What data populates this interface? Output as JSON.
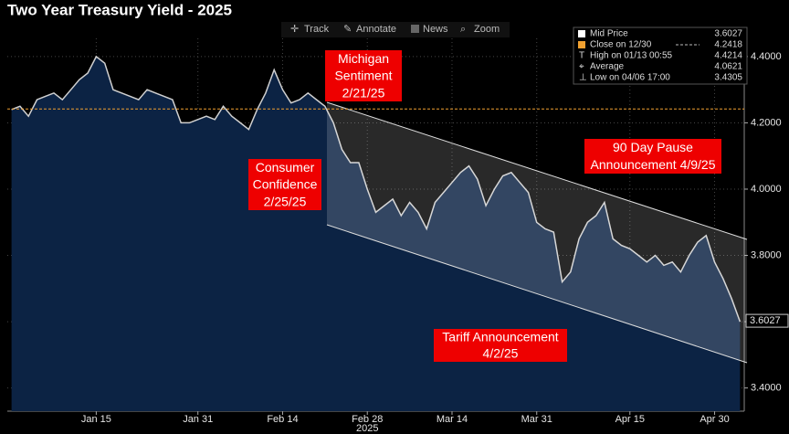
{
  "toolbar": [
    "Track",
    "Annotate",
    "News",
    "Zoom"
  ],
  "chart_data": {
    "type": "area",
    "title": "Two Year Treasury Yield - 2025",
    "x_label": "2025",
    "categories": [
      null,
      null,
      null,
      null,
      null,
      null,
      null,
      null,
      null,
      null,
      "Jan 15",
      null,
      null,
      null,
      null,
      null,
      null,
      null,
      null,
      null,
      null,
      null,
      "Jan 31",
      null,
      null,
      null,
      null,
      null,
      null,
      null,
      null,
      null,
      "Feb 14",
      null,
      null,
      null,
      null,
      null,
      null,
      null,
      null,
      null,
      "Feb 28",
      null,
      null,
      null,
      null,
      null,
      null,
      null,
      null,
      null,
      "Mar 14",
      null,
      null,
      null,
      null,
      null,
      null,
      null,
      null,
      null,
      "Mar 31",
      null,
      null,
      null,
      null,
      null,
      null,
      null,
      null,
      null,
      null,
      "Apr 15",
      null,
      null,
      null,
      null,
      null,
      null,
      null,
      null,
      null,
      "Apr 30",
      null,
      null,
      null
    ],
    "values": [
      4.24,
      4.25,
      4.22,
      4.27,
      4.28,
      4.29,
      4.27,
      4.3,
      4.33,
      4.35,
      4.4,
      4.38,
      4.3,
      4.29,
      4.28,
      4.27,
      4.3,
      4.29,
      4.28,
      4.27,
      4.2,
      4.2,
      4.21,
      4.22,
      4.21,
      4.25,
      4.22,
      4.2,
      4.18,
      4.24,
      4.29,
      4.36,
      4.3,
      4.26,
      4.27,
      4.29,
      4.27,
      4.25,
      4.2,
      4.12,
      4.08,
      4.08,
      4.0,
      3.93,
      3.95,
      3.97,
      3.92,
      3.96,
      3.93,
      3.88,
      3.96,
      3.99,
      4.02,
      4.05,
      4.07,
      4.03,
      3.95,
      4.0,
      4.04,
      4.05,
      4.02,
      3.99,
      3.9,
      3.88,
      3.87,
      3.72,
      3.75,
      3.85,
      3.9,
      3.92,
      3.96,
      3.85,
      3.83,
      3.82,
      3.8,
      3.78,
      3.8,
      3.77,
      3.78,
      3.75,
      3.8,
      3.84,
      3.86,
      3.78,
      3.73,
      3.67,
      3.6
    ],
    "color": "#d0d0d0",
    "area_color": "#0c2344",
    "ylim": [
      3.33,
      4.51
    ],
    "yticks": [
      {
        "value": 3.4,
        "label": "3.4000"
      },
      {
        "value": 3.6,
        "label": "3.6000"
      },
      {
        "value": 3.8,
        "label": "3.8000"
      },
      {
        "value": 4.0,
        "label": "4.0000"
      },
      {
        "value": 4.2,
        "label": "4.2000"
      },
      {
        "value": 4.4,
        "label": "4.4000"
      }
    ],
    "grid": true,
    "legend": [
      {
        "label": "Mid Price",
        "value": 3.6027
      },
      {
        "label": "Close on 12/30",
        "value": 4.2418
      },
      {
        "label": "High on 01/13 00:55",
        "value": 4.4214
      },
      {
        "label": "Average",
        "value": 4.0621
      },
      {
        "label": "Low on 04/06 17:00",
        "value": 3.4305
      }
    ],
    "annotations": [
      {
        "lines": [
          "Michigan",
          "Sentiment",
          "2/21/25"
        ]
      },
      {
        "lines": [
          "Consumer",
          "Confidence",
          "2/25/25"
        ]
      },
      {
        "lines": [
          "90 Day Pause",
          "Announcement 4/9/25"
        ]
      },
      {
        "lines": [
          "Tariff Announcement",
          "4/2/25"
        ]
      }
    ]
  }
}
